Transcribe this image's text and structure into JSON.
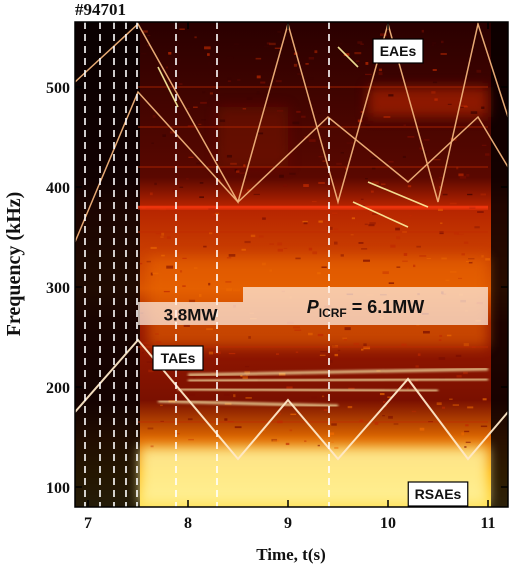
{
  "chart_data": {
    "type": "heatmap",
    "title": "#94701",
    "xlabel": "Time, t(s)",
    "ylabel": "Frequency (kHz)",
    "xlim": [
      6.87,
      11.2
    ],
    "ylim": [
      80,
      565
    ],
    "xticks": [
      7,
      8,
      9,
      10,
      11
    ],
    "yticks": [
      100,
      200,
      300,
      400,
      500
    ],
    "colormap": [
      "#000000",
      "#3a0300",
      "#7a0d00",
      "#c02a00",
      "#ee6a00",
      "#ffb21a",
      "#fff3a0"
    ],
    "grid": false,
    "dashed_time_markers": [
      6.97,
      7.12,
      7.26,
      7.38,
      7.49,
      7.88,
      8.29,
      9.41
    ],
    "power_levels": [
      {
        "label": "3.8MW",
        "t_start": 7.5,
        "t_end": 8.55,
        "freq_min": 262,
        "freq_max": 285
      },
      {
        "label": "P_ICRF = 6.1MW",
        "t_start": 8.55,
        "t_end": 11.0,
        "freq_min": 262,
        "freq_max": 300
      }
    ],
    "mode_labels": [
      {
        "label": "EAEs",
        "t": 10.1,
        "freq": 536
      },
      {
        "label": "TAEs",
        "t": 7.9,
        "freq": 229
      },
      {
        "label": "RSAEs",
        "t": 10.5,
        "freq": 93
      }
    ],
    "sweep_lines": [
      {
        "name": "upper",
        "t": [
          6.87,
          7.5,
          8.5,
          9.0,
          9.5,
          10.0,
          10.5,
          10.9,
          11.2
        ],
        "freq": [
          505,
          563,
          385,
          563,
          385,
          563,
          385,
          563,
          470
        ]
      },
      {
        "name": "middle",
        "t": [
          6.87,
          7.5,
          8.5,
          9.4,
          10.2,
          10.9,
          11.2
        ],
        "freq": [
          345,
          495,
          385,
          470,
          405,
          470,
          420
        ]
      },
      {
        "name": "lower",
        "t": [
          6.87,
          7.5,
          8.5,
          9.0,
          9.5,
          10.2,
          10.8,
          11.2
        ],
        "freq": [
          175,
          247,
          128,
          187,
          128,
          208,
          128,
          175
        ]
      }
    ],
    "mode_bands": [
      {
        "name": "TAE 1",
        "t": [
          8.0,
          11.0
        ],
        "freq": [
          212,
          218
        ]
      },
      {
        "name": "TAE 2",
        "t": [
          8.0,
          11.0
        ],
        "freq": [
          206,
          208
        ]
      },
      {
        "name": "TAE 3",
        "t": [
          7.9,
          10.5
        ],
        "freq": [
          198,
          196
        ]
      },
      {
        "name": "TAE 4",
        "t": [
          7.7,
          9.5
        ],
        "freq": [
          186,
          181
        ]
      }
    ],
    "text_labels": {
      "pref": "P",
      "sub": "ICRF",
      "suffix": " = 6.1MW",
      "low_power": "3.8MW"
    }
  }
}
